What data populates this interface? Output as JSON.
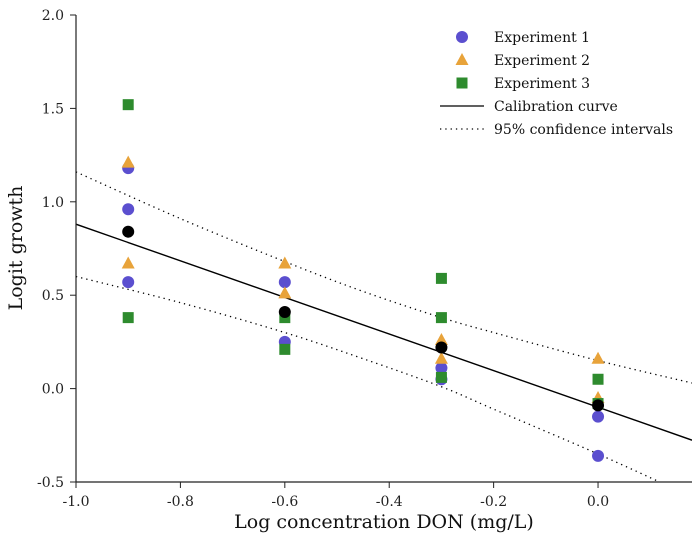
{
  "chart_data": {
    "type": "scatter",
    "title": "",
    "xlabel": "Log concentration DON (mg/L)",
    "ylabel": "Logit growth",
    "xlim": [
      -1.0,
      0.18
    ],
    "ylim": [
      -0.5,
      2.0
    ],
    "xticks": [
      -1.0,
      -0.8,
      -0.6,
      -0.4,
      -0.2,
      0.0
    ],
    "xtick_labels": [
      "-1.0",
      "-0.8",
      "-0.6",
      "-0.4",
      "-0.2",
      "0.0"
    ],
    "yticks": [
      -0.5,
      0.0,
      0.5,
      1.0,
      1.5,
      2.0
    ],
    "ytick_labels": [
      "-0.5",
      "0.0",
      "0.5",
      "1.0",
      "1.5",
      "2.0"
    ],
    "grid": false,
    "legend_position": "top-right",
    "series": [
      {
        "name": "Experiment 1",
        "marker": "circle",
        "color": "#5b4fcf",
        "x": [
          -0.9,
          -0.9,
          -0.9,
          -0.6,
          -0.6,
          -0.3,
          -0.3,
          0.0,
          0.0
        ],
        "y": [
          1.18,
          0.96,
          0.57,
          0.57,
          0.25,
          0.11,
          0.05,
          -0.15,
          -0.36
        ]
      },
      {
        "name": "Experiment 2",
        "marker": "triangle",
        "color": "#e8a33a",
        "x": [
          -0.9,
          -0.9,
          -0.6,
          -0.6,
          -0.3,
          -0.3,
          0.0,
          0.0
        ],
        "y": [
          1.21,
          0.67,
          0.67,
          0.51,
          0.26,
          0.16,
          0.16,
          -0.05
        ]
      },
      {
        "name": "Experiment 3",
        "marker": "square",
        "color": "#2e8b2e",
        "x": [
          -0.9,
          -0.9,
          -0.6,
          -0.6,
          -0.3,
          -0.3,
          -0.3,
          0.0,
          0.0
        ],
        "y": [
          1.52,
          0.38,
          0.38,
          0.21,
          0.59,
          0.38,
          0.06,
          0.05,
          -0.08
        ]
      },
      {
        "name": "Mean",
        "marker": "circle",
        "color": "#000000",
        "legend": false,
        "x": [
          -0.9,
          -0.6,
          -0.3,
          0.0
        ],
        "y": [
          0.84,
          0.41,
          0.22,
          -0.09
        ]
      }
    ],
    "lines": [
      {
        "name": "Calibration curve",
        "style": "solid",
        "color": "#000000",
        "x": [
          -1.0,
          0.18
        ],
        "y": [
          0.88,
          -0.276
        ]
      },
      {
        "name": "95% confidence intervals",
        "style": "dotted",
        "color": "#000000",
        "x": [
          -1.0,
          -0.8,
          -0.6,
          -0.45,
          -0.3,
          -0.2,
          0.0,
          0.18
        ],
        "upper": [
          1.16,
          0.91,
          0.68,
          0.52,
          0.38,
          0.3,
          0.15,
          0.03
        ],
        "lower": [
          0.6,
          0.46,
          0.3,
          0.16,
          0.01,
          -0.11,
          -0.35,
          -0.58
        ]
      }
    ]
  }
}
